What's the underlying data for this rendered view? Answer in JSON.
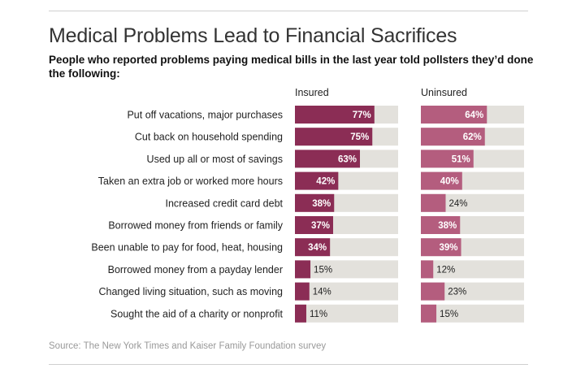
{
  "title": "Medical Problems Lead to Financial Sacrifices",
  "subtitle": "People who reported problems paying medical bills in the last year told pollsters they’d done the following:",
  "source": "Source: The New York Times and Kaiser Family Foundation survey",
  "colors": {
    "insured": "#8b2d55",
    "uninsured": "#b45d7e",
    "track": "#e3e1dc"
  },
  "chart_data": {
    "type": "bar",
    "title": "Medical Problems Lead to Financial Sacrifices",
    "xlim": [
      0,
      100
    ],
    "categories": [
      "Put off vacations, major purchases",
      "Cut back on household spending",
      "Used up all or most of savings",
      "Taken an extra job or worked more hours",
      "Increased credit card debt",
      "Borrowed money from friends or family",
      "Been unable to pay for food, heat, housing",
      "Borrowed money from a payday lender",
      "Changed living situation, such as moving",
      "Sought the aid of a charity or nonprofit"
    ],
    "series": [
      {
        "name": "Insured",
        "values": [
          77,
          75,
          63,
          42,
          38,
          37,
          34,
          15,
          14,
          11
        ]
      },
      {
        "name": "Uninsured",
        "values": [
          64,
          62,
          51,
          40,
          24,
          38,
          39,
          12,
          23,
          15
        ]
      }
    ]
  }
}
